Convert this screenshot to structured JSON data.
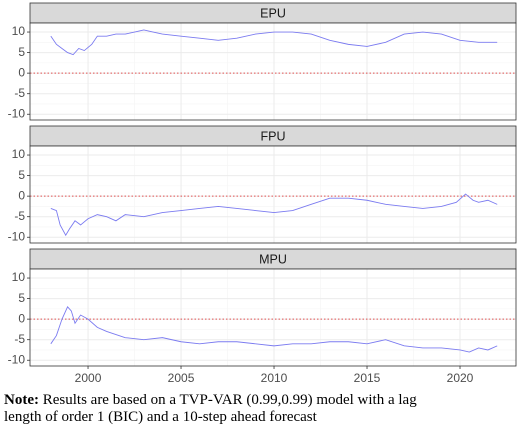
{
  "chart_data": [
    {
      "type": "line",
      "title": "EPU",
      "x": [
        1998.0,
        1998.3,
        1998.6,
        1998.9,
        1999.2,
        1999.5,
        1999.8,
        2000.2,
        2000.5,
        2001,
        2001.5,
        2002,
        2002.5,
        2003,
        2003.5,
        2004,
        2005,
        2006,
        2007,
        2008,
        2009,
        2010,
        2011,
        2012,
        2013,
        2014,
        2015,
        2016,
        2017,
        2018,
        2019,
        2020,
        2021,
        2022
      ],
      "series": [
        {
          "color": "#7b7bf0",
          "values": [
            9,
            7,
            6,
            5,
            4.5,
            6,
            5.5,
            7,
            9,
            9,
            9.5,
            9.5,
            10,
            10.5,
            10,
            9.5,
            9,
            8.5,
            8,
            8.5,
            9.5,
            10,
            10,
            9.5,
            8,
            7,
            6.5,
            7.5,
            9.5,
            10,
            9.5,
            8,
            7.5,
            7.5
          ]
        }
      ],
      "xlim": [
        1996.88,
        2023.01
      ],
      "xticks": [
        2000,
        2005,
        2010,
        2015,
        2020
      ],
      "ylim": [
        -11.4,
        12.2
      ],
      "yticks": [
        -10,
        -5,
        0,
        5,
        10
      ],
      "reference_line": 0,
      "grid": true
    },
    {
      "type": "line",
      "title": "FPU",
      "x": [
        1998.0,
        1998.3,
        1998.5,
        1998.8,
        1999.0,
        1999.3,
        1999.6,
        2000,
        2000.5,
        2001,
        2001.5,
        2002,
        2003,
        2004,
        2005,
        2006,
        2007,
        2008,
        2009,
        2010,
        2011,
        2012,
        2013,
        2014,
        2015,
        2016,
        2017,
        2018,
        2019,
        2019.8,
        2020.3,
        2020.7,
        2021,
        2021.5,
        2022
      ],
      "series": [
        {
          "color": "#7b7bf0",
          "values": [
            -3,
            -3.5,
            -7,
            -9.5,
            -8,
            -6,
            -7,
            -5.5,
            -4.5,
            -5,
            -6,
            -4.5,
            -5,
            -4,
            -3.5,
            -3,
            -2.5,
            -3,
            -3.5,
            -4,
            -3.5,
            -2,
            -0.5,
            -0.5,
            -1,
            -2,
            -2.5,
            -3,
            -2.5,
            -1.5,
            0.5,
            -1,
            -1.5,
            -1,
            -2
          ]
        }
      ],
      "xlim": [
        1996.88,
        2023.01
      ],
      "xticks": [
        2000,
        2005,
        2010,
        2015,
        2020
      ],
      "ylim": [
        -11.4,
        12.2
      ],
      "yticks": [
        -10,
        -5,
        0,
        5,
        10
      ],
      "reference_line": 0,
      "grid": true
    },
    {
      "type": "line",
      "title": "MPU",
      "x": [
        1998.0,
        1998.3,
        1998.6,
        1998.9,
        1999.1,
        1999.3,
        1999.6,
        2000,
        2000.5,
        2001,
        2002,
        2003,
        2004,
        2005,
        2006,
        2007,
        2008,
        2009,
        2010,
        2011,
        2012,
        2013,
        2014,
        2015,
        2016,
        2017,
        2018,
        2019,
        2020,
        2020.5,
        2021,
        2021.5,
        2022
      ],
      "series": [
        {
          "color": "#7b7bf0",
          "values": [
            -6,
            -4,
            0,
            3,
            2,
            -1,
            1,
            0,
            -2,
            -3,
            -4.5,
            -5,
            -4.5,
            -5.5,
            -6,
            -5.5,
            -5.5,
            -6,
            -6.5,
            -6,
            -6,
            -5.5,
            -5.5,
            -6,
            -5,
            -6.5,
            -7,
            -7,
            -7.5,
            -8,
            -7,
            -7.5,
            -6.5
          ]
        }
      ],
      "xlim": [
        1996.88,
        2023.01
      ],
      "xticks": [
        2000,
        2005,
        2010,
        2015,
        2020
      ],
      "ylim": [
        -11.4,
        12.2
      ],
      "yticks": [
        -10,
        -5,
        0,
        5,
        10
      ],
      "reference_line": 0,
      "grid": true
    }
  ],
  "note": {
    "label": "Note:",
    "text": "Results are based on a TVP-VAR (0.99,0.99) model with a lag length of order 1 (BIC) and a 10-step ahead forecast"
  }
}
